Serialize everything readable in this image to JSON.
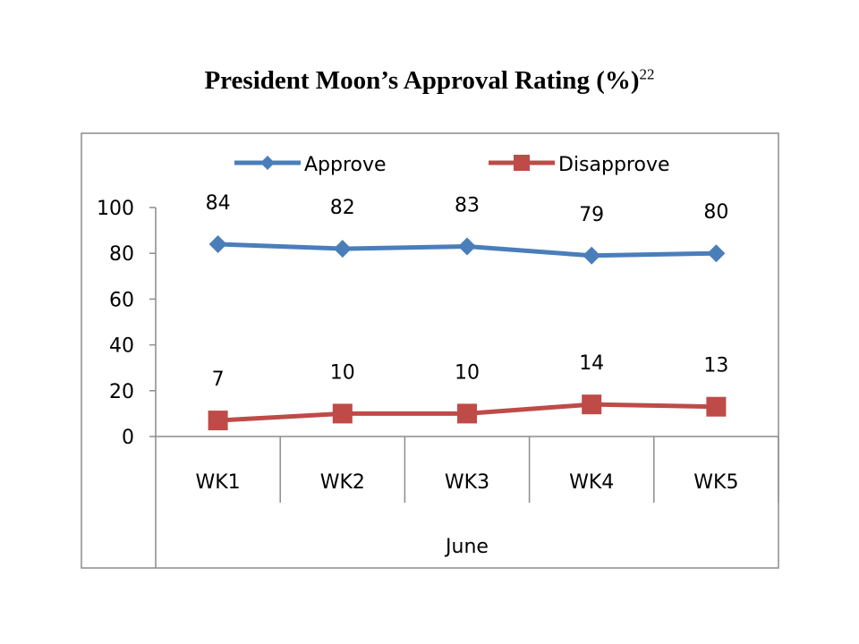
{
  "title": "President Moon’s Approval Rating (%)",
  "title_footnote": "22",
  "chart_data": {
    "type": "line",
    "title": "President Moon’s Approval Rating (%)",
    "categories": [
      "WK1",
      "WK2",
      "WK3",
      "WK4",
      "WK5"
    ],
    "group_label": "June",
    "series": [
      {
        "name": "Approve",
        "values": [
          84,
          82,
          83,
          79,
          80
        ],
        "color": "#4a7ebb",
        "marker": "diamond"
      },
      {
        "name": "Disapprove",
        "values": [
          7,
          10,
          10,
          14,
          13
        ],
        "color": "#be4b48",
        "marker": "square"
      }
    ],
    "ylim": [
      0,
      100
    ],
    "yticks": [
      0,
      20,
      40,
      60,
      80,
      100
    ],
    "grid": false,
    "legend_position": "top",
    "data_labels": true
  }
}
